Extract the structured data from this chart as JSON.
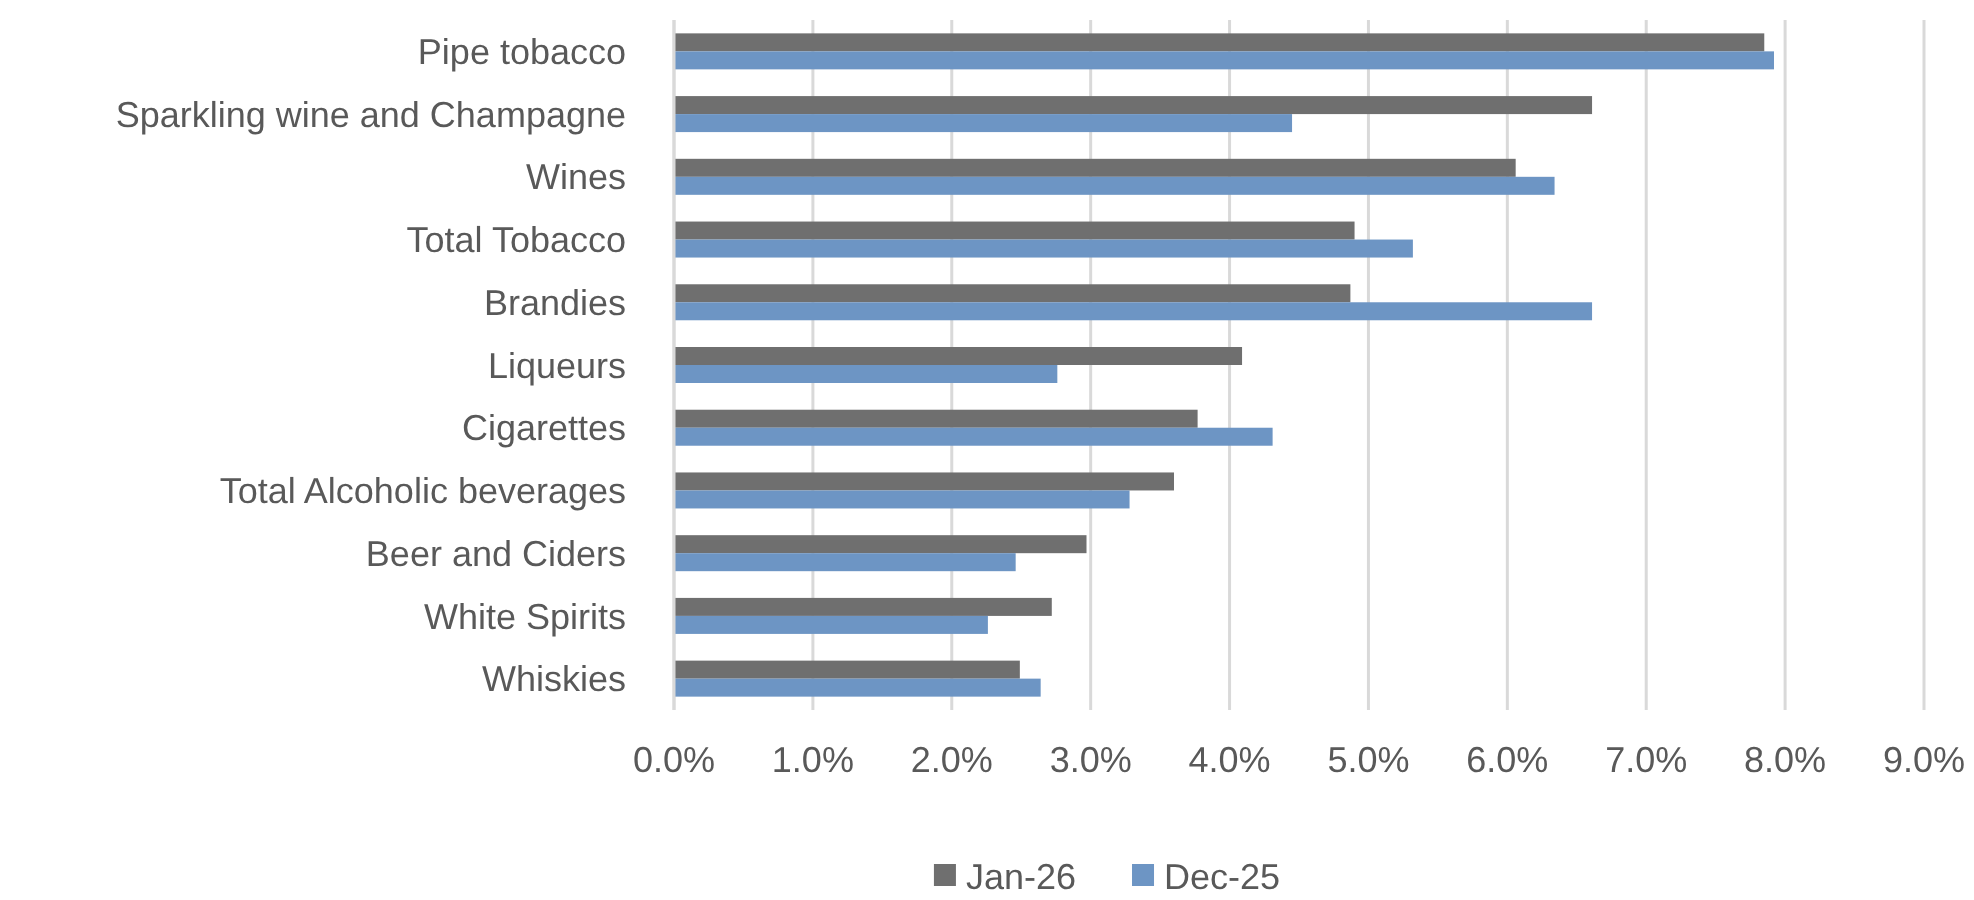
{
  "chart_data": {
    "type": "bar",
    "orientation": "horizontal",
    "categories": [
      "Pipe tobacco",
      "Sparkling wine and Champagne",
      "Wines",
      "Total Tobacco",
      "Brandies",
      "Liqueurs",
      "Cigarettes",
      "Total Alcoholic beverages",
      "Beer and Ciders",
      "White Spirits",
      "Whiskies"
    ],
    "series": [
      {
        "name": "Jan-26",
        "color": "#6f6f6f",
        "values": [
          7.85,
          6.61,
          6.06,
          4.9,
          4.87,
          4.09,
          3.77,
          3.6,
          2.97,
          2.72,
          2.49
        ]
      },
      {
        "name": "Dec-25",
        "color": "#6d95c4",
        "values": [
          7.92,
          4.45,
          6.34,
          5.32,
          6.61,
          2.76,
          4.31,
          3.28,
          2.46,
          2.26,
          2.64
        ]
      }
    ],
    "xlim": [
      0,
      9
    ],
    "xticks": [
      {
        "value": 0,
        "label": "0.0%"
      },
      {
        "value": 1,
        "label": "1.0%"
      },
      {
        "value": 2,
        "label": "2.0%"
      },
      {
        "value": 3,
        "label": "3.0%"
      },
      {
        "value": 4,
        "label": "4.0%"
      },
      {
        "value": 5,
        "label": "5.0%"
      },
      {
        "value": 6,
        "label": "6.0%"
      },
      {
        "value": 7,
        "label": "7.0%"
      },
      {
        "value": 8,
        "label": "8.0%"
      },
      {
        "value": 9,
        "label": "9.0%"
      }
    ],
    "grid": "x",
    "legend": "bottom"
  }
}
